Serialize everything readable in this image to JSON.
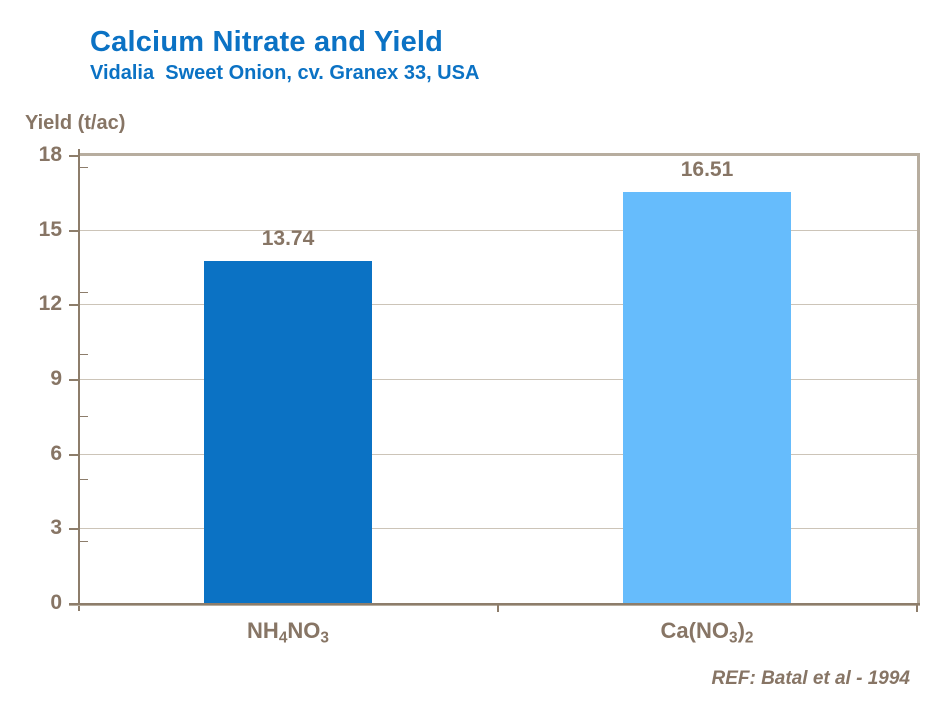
{
  "chart_data": {
    "type": "bar",
    "title": "Calcium Nitrate and Yield",
    "subtitle": "Vidalia  Sweet Onion, cv. Granex 33, USA",
    "ylabel": "Yield (t/ac)",
    "xlabel": "",
    "ylim": [
      0,
      18
    ],
    "yticks": [
      0,
      3,
      6,
      9,
      12,
      15,
      18
    ],
    "minor_ticks": [
      2.5,
      5,
      7.5,
      10,
      12.5,
      15,
      17.5
    ],
    "grid": true,
    "legend_position": "none",
    "categories": [
      "NH4NO3",
      "Ca(NO3)2"
    ],
    "category_parts": [
      [
        {
          "text": "NH",
          "sub": false
        },
        {
          "text": "4",
          "sub": true
        },
        {
          "text": "NO",
          "sub": false
        },
        {
          "text": "3",
          "sub": true
        }
      ],
      [
        {
          "text": "Ca(NO",
          "sub": false
        },
        {
          "text": "3",
          "sub": true
        },
        {
          "text": ")",
          "sub": false
        },
        {
          "text": "2",
          "sub": true
        }
      ]
    ],
    "values": [
      13.74,
      16.51
    ],
    "value_labels": [
      "13.74",
      "16.51"
    ],
    "bar_colors": [
      "#0b72c4",
      "#66bcfc"
    ],
    "title_color": "#0b72c4",
    "text_color": "#877565",
    "axis_color": "#8d7d6b",
    "grid_color": "#ccc4b8",
    "border_color": "#b7ad9f",
    "reference": "REF: Batal et al - 1994"
  }
}
